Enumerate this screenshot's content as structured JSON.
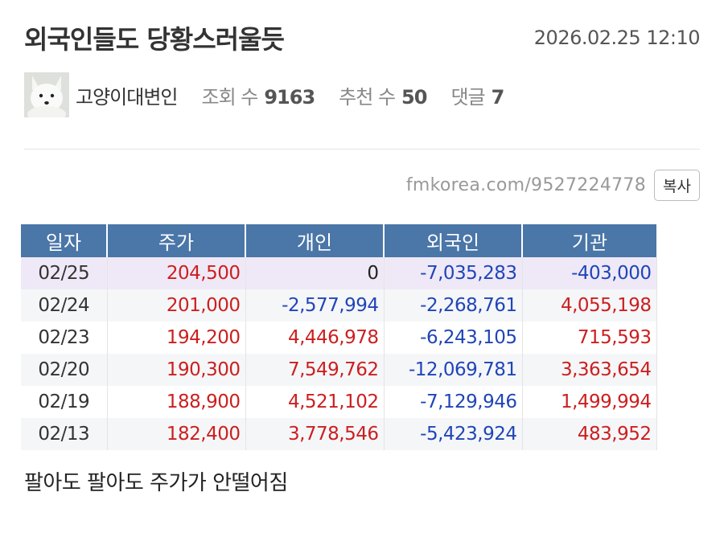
{
  "post": {
    "title": "외국인들도 당황스러울듯",
    "datetime": "2026.02.25 12:10",
    "author": "고양이대변인",
    "views_label": "조회 수",
    "views": "9163",
    "likes_label": "추천 수",
    "likes": "50",
    "comments_label": "댓글",
    "comments": "7",
    "url": "fmkorea.com/9527224778",
    "copy_label": "복사",
    "caption": "팔아도 팔아도 주가가 안떨어짐"
  },
  "table": {
    "headers": [
      "일자",
      "주가",
      "개인",
      "외국인",
      "기관"
    ],
    "rows": [
      {
        "date": "02/25",
        "price": "204,500",
        "individual": "0",
        "foreign": "-7,035,283",
        "institution": "-403,000"
      },
      {
        "date": "02/24",
        "price": "201,000",
        "individual": "-2,577,994",
        "foreign": "-2,268,761",
        "institution": "4,055,198"
      },
      {
        "date": "02/23",
        "price": "194,200",
        "individual": "4,446,978",
        "foreign": "-6,243,105",
        "institution": "715,593"
      },
      {
        "date": "02/20",
        "price": "190,300",
        "individual": "7,549,762",
        "foreign": "-12,069,781",
        "institution": "3,363,654"
      },
      {
        "date": "02/19",
        "price": "188,900",
        "individual": "4,521,102",
        "foreign": "-7,129,946",
        "institution": "1,499,994"
      },
      {
        "date": "02/13",
        "price": "182,400",
        "individual": "3,778,546",
        "foreign": "-5,423,924",
        "institution": "483,952"
      }
    ]
  },
  "colors": {
    "header_bg": "#4a76a8",
    "positive": "#cc1f1f",
    "negative": "#2045b8",
    "highlight_row": "#efe9f7"
  }
}
